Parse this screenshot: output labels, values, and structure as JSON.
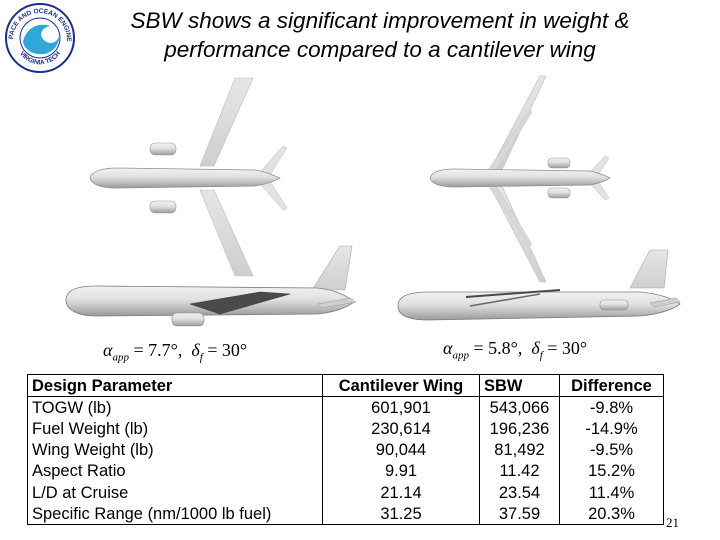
{
  "slide": {
    "title": "SBW shows a significant improvement in weight & performance compared to a cantilever wing",
    "page_number": "21"
  },
  "logo": {
    "text_top": "AEROSPACE AND OCEAN ENGINEERING",
    "text_bottom": "VIRGINIA TECH",
    "colors": {
      "ring": "#1a2f8c",
      "water": "#2fa7d8",
      "text": "#1a2f8c"
    }
  },
  "conditions": {
    "left": {
      "alpha_symbol": "α",
      "alpha_sub": "app",
      "alpha_value": "= 7.7°",
      "delta_symbol": "δ",
      "delta_sub": "f",
      "delta_value": "= 30°"
    },
    "right": {
      "alpha_symbol": "α",
      "alpha_sub": "app",
      "alpha_value": "= 5.8°",
      "delta_symbol": "δ",
      "delta_sub": "f",
      "delta_value": "= 30°"
    }
  },
  "table": {
    "headers": [
      "Design Parameter",
      "Cantilever Wing",
      "SBW",
      "Difference"
    ],
    "rows": [
      [
        "TOGW (lb)",
        "601,901",
        "543,066",
        "-9.8%"
      ],
      [
        "Fuel Weight (lb)",
        "230,614",
        "196,236",
        "-14.9%"
      ],
      [
        "Wing Weight (lb)",
        "90,044",
        "81,492",
        "-9.5%"
      ],
      [
        "Aspect Ratio",
        "9.91",
        "11.42",
        "15.2%"
      ],
      [
        "L/D at Cruise",
        "21.14",
        "23.54",
        "11.4%"
      ],
      [
        "Specific Range (nm/1000 lb fuel)",
        "31.25",
        "37.59",
        "20.3%"
      ]
    ]
  }
}
